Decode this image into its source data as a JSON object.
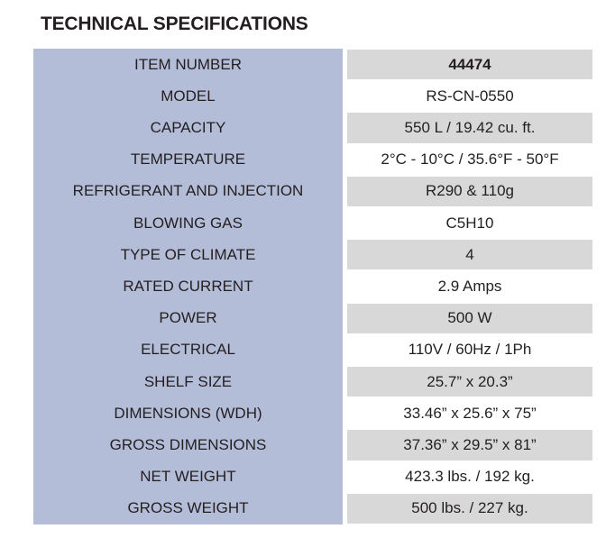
{
  "title": "TECHNICAL SPECIFICATIONS",
  "table": {
    "rows": [
      [
        "ITEM NUMBER",
        "44474"
      ],
      [
        "MODEL",
        "RS-CN-0550"
      ],
      [
        "CAPACITY",
        "550 L / 19.42 cu. ft."
      ],
      [
        "TEMPERATURE",
        "2°C - 10°C / 35.6°F - 50°F"
      ],
      [
        "REFRIGERANT AND INJECTION",
        "R290 & 110g"
      ],
      [
        "BLOWING GAS",
        "C5H10"
      ],
      [
        "TYPE OF CLIMATE",
        "4"
      ],
      [
        "RATED CURRENT",
        "2.9 Amps"
      ],
      [
        "POWER",
        "500 W"
      ],
      [
        "ELECTRICAL",
        "110V / 60Hz / 1Ph"
      ],
      [
        "SHELF SIZE",
        "25.7” x 20.3”"
      ],
      [
        "DIMENSIONS (WDH)",
        "33.46” x 25.6” x 75”"
      ],
      [
        "GROSS DIMENSIONS",
        "37.36” x 29.5” x 81”"
      ],
      [
        "NET WEIGHT",
        "423.3 lbs. / 192 kg."
      ],
      [
        "GROSS WEIGHT",
        "500 lbs. / 227 kg."
      ]
    ]
  }
}
